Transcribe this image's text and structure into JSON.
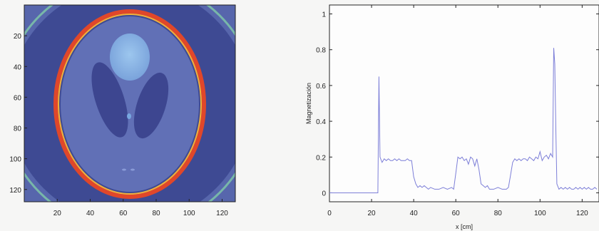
{
  "chart_data": [
    {
      "type": "heatmap",
      "title": "",
      "xlabel": "",
      "ylabel": "",
      "xlim": [
        0,
        128
      ],
      "ylim": [
        128,
        0
      ],
      "x_ticks": [
        20,
        40,
        60,
        80,
        100,
        120
      ],
      "y_ticks": [
        20,
        40,
        60,
        80,
        100,
        120
      ],
      "background_color": "#5766ac",
      "ellipse_edge_color": "#e0472a",
      "colors": {
        "outer_dark": "#3e4a93",
        "inner_fill": "#6170b6",
        "dark_lobe": "#3d4690",
        "bright_disc": "#86b0e2"
      }
    },
    {
      "type": "line",
      "title": "",
      "xlabel": "x [cm]",
      "ylabel": "Magnetización",
      "xlim": [
        0,
        128
      ],
      "ylim": [
        -0.05,
        1.05
      ],
      "x_ticks": [
        0,
        20,
        40,
        60,
        80,
        100,
        120
      ],
      "y_ticks": [
        0,
        0.2,
        0.4,
        0.6,
        0.8,
        1
      ],
      "grid": false,
      "line_color": "#7d7fd8",
      "series": [
        {
          "x": [
            0,
            22,
            23,
            23.5,
            24,
            25,
            26,
            27,
            28,
            29,
            30,
            31,
            32,
            33,
            34,
            35,
            36,
            37,
            38,
            39,
            40,
            41,
            42,
            43,
            44,
            45,
            46,
            47,
            48,
            50,
            52,
            54,
            56,
            58,
            59,
            60,
            61,
            62,
            63,
            64,
            65,
            66,
            67,
            68,
            69,
            70,
            71,
            72,
            73,
            74,
            75,
            76,
            78,
            80,
            82,
            84,
            85,
            86,
            87,
            88,
            89,
            90,
            91,
            92,
            93,
            94,
            95,
            96,
            97,
            98,
            99,
            100,
            101,
            102,
            103,
            104,
            105,
            106,
            106.5,
            107,
            107.5,
            108,
            109,
            110,
            111,
            112,
            113,
            114,
            115,
            116,
            117,
            118,
            119,
            120,
            121,
            122,
            123,
            124,
            125,
            126,
            127
          ],
          "values": [
            0.0,
            0.0,
            0.0,
            0.65,
            0.2,
            0.17,
            0.19,
            0.18,
            0.19,
            0.18,
            0.18,
            0.19,
            0.18,
            0.19,
            0.18,
            0.18,
            0.18,
            0.19,
            0.18,
            0.18,
            0.09,
            0.05,
            0.03,
            0.04,
            0.03,
            0.04,
            0.03,
            0.02,
            0.03,
            0.02,
            0.02,
            0.03,
            0.02,
            0.03,
            0.02,
            0.11,
            0.2,
            0.19,
            0.2,
            0.18,
            0.19,
            0.16,
            0.2,
            0.19,
            0.15,
            0.19,
            0.13,
            0.05,
            0.04,
            0.03,
            0.04,
            0.02,
            0.02,
            0.03,
            0.02,
            0.02,
            0.03,
            0.1,
            0.17,
            0.19,
            0.18,
            0.19,
            0.18,
            0.19,
            0.19,
            0.18,
            0.2,
            0.19,
            0.18,
            0.2,
            0.19,
            0.23,
            0.18,
            0.2,
            0.21,
            0.19,
            0.22,
            0.2,
            0.81,
            0.72,
            0.35,
            0.05,
            0.02,
            0.03,
            0.02,
            0.03,
            0.02,
            0.03,
            0.02,
            0.02,
            0.03,
            0.02,
            0.03,
            0.02,
            0.03,
            0.02,
            0.03,
            0.02,
            0.02,
            0.03,
            0.02
          ]
        }
      ]
    }
  ]
}
